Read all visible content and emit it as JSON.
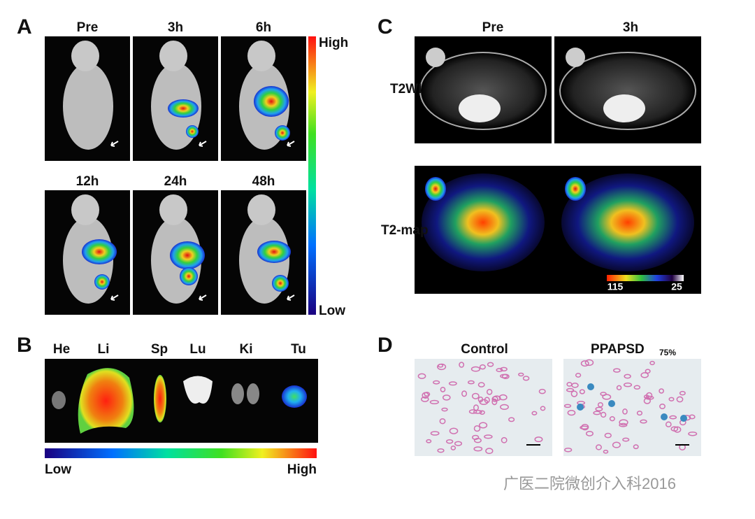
{
  "panel_a": {
    "label": "A",
    "timepoints": [
      "Pre",
      "3h",
      "6h",
      "12h",
      "24h",
      "48h"
    ],
    "scale_high": "High",
    "scale_low": "Low"
  },
  "panel_b": {
    "label": "B",
    "organs": [
      "He",
      "Li",
      "Sp",
      "Lu",
      "Ki",
      "Tu"
    ],
    "scale_low": "Low",
    "scale_high": "High"
  },
  "panel_c": {
    "label": "C",
    "columns": [
      "Pre",
      "3h"
    ],
    "rows": [
      "T2WI",
      "T2-map"
    ],
    "scale_left": 115,
    "scale_right": 25
  },
  "panel_d": {
    "label": "D",
    "columns": [
      "Control",
      "PPAPSD"
    ],
    "subscript": "75%"
  },
  "watermark": "广医二院微创介入科2016"
}
